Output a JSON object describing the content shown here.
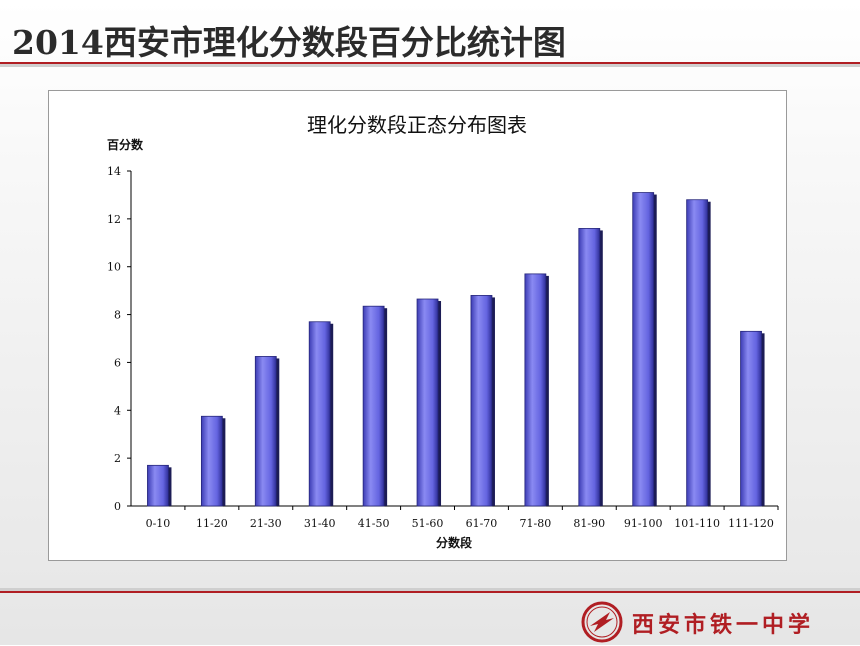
{
  "slide": {
    "title": "2014西安市理化分数段百分比统计图"
  },
  "footer": {
    "school_name": "西安市铁一中学",
    "logo_icon": "school-emblem-icon"
  },
  "colors": {
    "accent_red": "#b01e23",
    "bar_fill": "#6a6ae6",
    "bar_edge": "#22226a"
  },
  "chart_data": {
    "type": "bar",
    "title": "理化分数段正态分布图表",
    "ylabel": "百分数",
    "xlabel": "分数段",
    "categories": [
      "0-10",
      "11-20",
      "21-30",
      "31-40",
      "41-50",
      "51-60",
      "61-70",
      "71-80",
      "81-90",
      "91-100",
      "101-110",
      "111-120"
    ],
    "values": [
      1.7,
      3.75,
      6.25,
      7.7,
      8.35,
      8.65,
      8.8,
      9.7,
      11.6,
      13.1,
      12.8,
      7.3
    ],
    "ylim": [
      0,
      14
    ],
    "yticks": [
      0,
      2,
      4,
      6,
      8,
      10,
      12,
      14
    ],
    "grid": false,
    "legend": "none"
  }
}
